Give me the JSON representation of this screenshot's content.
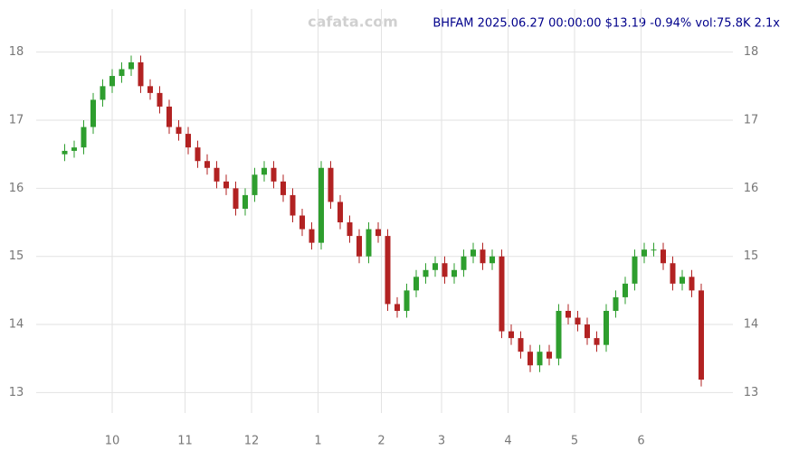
{
  "chart_data": {
    "type": "candlestick",
    "title": "BHFAM 2025.06.27 00:00:00 $13.19 -0.94% vol:75.8K 2.1x",
    "watermark": "cafata.com",
    "title_color": "#00008b",
    "up_color": "#2e9e2e",
    "down_color": "#b22222",
    "grid": true,
    "xlim": [
      -9,
      211
    ],
    "xticks": [
      {
        "value": 15,
        "label": "10"
      },
      {
        "value": 38,
        "label": "11"
      },
      {
        "value": 59,
        "label": "12"
      },
      {
        "value": 80,
        "label": "1"
      },
      {
        "value": 100,
        "label": "2"
      },
      {
        "value": 119,
        "label": "3"
      },
      {
        "value": 140,
        "label": "4"
      },
      {
        "value": 161,
        "label": "5"
      },
      {
        "value": 182,
        "label": "6"
      }
    ],
    "ylim": [
      12.7,
      18.5
    ],
    "yticks": [
      13,
      14,
      15,
      16,
      17,
      18
    ],
    "x": [
      0,
      3,
      6,
      9,
      12,
      15,
      18,
      21,
      24,
      27,
      30,
      33,
      36,
      39,
      42,
      45,
      48,
      51,
      54,
      57,
      60,
      63,
      66,
      69,
      72,
      75,
      78,
      81,
      84,
      87,
      90,
      93,
      96,
      99,
      102,
      105,
      108,
      111,
      114,
      117,
      120,
      123,
      126,
      129,
      132,
      135,
      138,
      141,
      144,
      147,
      150,
      153,
      156,
      159,
      162,
      165,
      168,
      171,
      174,
      177,
      180,
      183,
      186,
      189,
      192,
      195,
      198,
      201
    ],
    "open": [
      16.5,
      16.55,
      16.6,
      16.9,
      17.3,
      17.5,
      17.65,
      17.75,
      17.85,
      17.5,
      17.4,
      17.2,
      16.9,
      16.8,
      16.6,
      16.4,
      16.3,
      16.1,
      16.0,
      15.7,
      15.9,
      16.2,
      16.3,
      16.1,
      15.9,
      15.6,
      15.4,
      15.2,
      16.3,
      15.8,
      15.5,
      15.3,
      15.0,
      15.4,
      15.3,
      14.3,
      14.2,
      14.5,
      14.7,
      14.8,
      14.9,
      14.7,
      14.8,
      15.0,
      15.1,
      14.9,
      15.0,
      13.9,
      13.8,
      13.6,
      13.4,
      13.6,
      13.5,
      14.2,
      14.1,
      14.0,
      13.8,
      13.7,
      14.2,
      14.4,
      14.6,
      15.0,
      15.1,
      15.1,
      14.9,
      14.6,
      14.7,
      14.5
    ],
    "high": [
      16.65,
      16.7,
      17.0,
      17.4,
      17.6,
      17.75,
      17.85,
      17.95,
      17.95,
      17.6,
      17.5,
      17.3,
      17.0,
      16.9,
      16.7,
      16.5,
      16.4,
      16.2,
      16.1,
      16.0,
      16.3,
      16.4,
      16.4,
      16.2,
      16.0,
      15.7,
      15.5,
      16.4,
      16.4,
      15.9,
      15.6,
      15.4,
      15.5,
      15.5,
      15.4,
      14.4,
      14.6,
      14.8,
      14.9,
      15.0,
      15.0,
      14.9,
      15.1,
      15.2,
      15.2,
      15.1,
      15.1,
      14.0,
      13.9,
      13.7,
      13.7,
      13.7,
      14.3,
      14.3,
      14.2,
      14.1,
      13.9,
      14.3,
      14.5,
      14.7,
      15.1,
      15.2,
      15.2,
      15.2,
      15.0,
      14.8,
      14.8,
      14.6
    ],
    "low": [
      16.4,
      16.45,
      16.5,
      16.8,
      17.2,
      17.4,
      17.55,
      17.65,
      17.4,
      17.3,
      17.1,
      16.8,
      16.7,
      16.5,
      16.3,
      16.2,
      16.0,
      15.9,
      15.6,
      15.6,
      15.8,
      16.1,
      16.0,
      15.8,
      15.5,
      15.3,
      15.1,
      15.1,
      15.7,
      15.4,
      15.2,
      14.9,
      14.9,
      15.2,
      14.2,
      14.1,
      14.1,
      14.4,
      14.6,
      14.7,
      14.6,
      14.6,
      14.7,
      14.9,
      14.8,
      14.8,
      13.8,
      13.7,
      13.5,
      13.3,
      13.3,
      13.4,
      13.4,
      14.0,
      13.9,
      13.7,
      13.6,
      13.6,
      14.1,
      14.3,
      14.5,
      14.9,
      15.0,
      14.8,
      14.5,
      14.5,
      14.4,
      13.09
    ],
    "close": [
      16.55,
      16.6,
      16.9,
      17.3,
      17.5,
      17.65,
      17.75,
      17.85,
      17.5,
      17.4,
      17.2,
      16.9,
      16.8,
      16.6,
      16.4,
      16.3,
      16.1,
      16.0,
      15.7,
      15.9,
      16.2,
      16.3,
      16.1,
      15.9,
      15.6,
      15.4,
      15.2,
      16.3,
      15.8,
      15.5,
      15.3,
      15.0,
      15.4,
      15.3,
      14.3,
      14.2,
      14.5,
      14.7,
      14.8,
      14.9,
      14.7,
      14.8,
      15.0,
      15.1,
      14.9,
      15.0,
      13.9,
      13.8,
      13.6,
      13.4,
      13.6,
      13.5,
      14.2,
      14.1,
      14.0,
      13.8,
      13.7,
      14.2,
      14.4,
      14.6,
      15.0,
      15.1,
      15.1,
      14.9,
      14.6,
      14.7,
      14.5,
      13.19
    ]
  }
}
